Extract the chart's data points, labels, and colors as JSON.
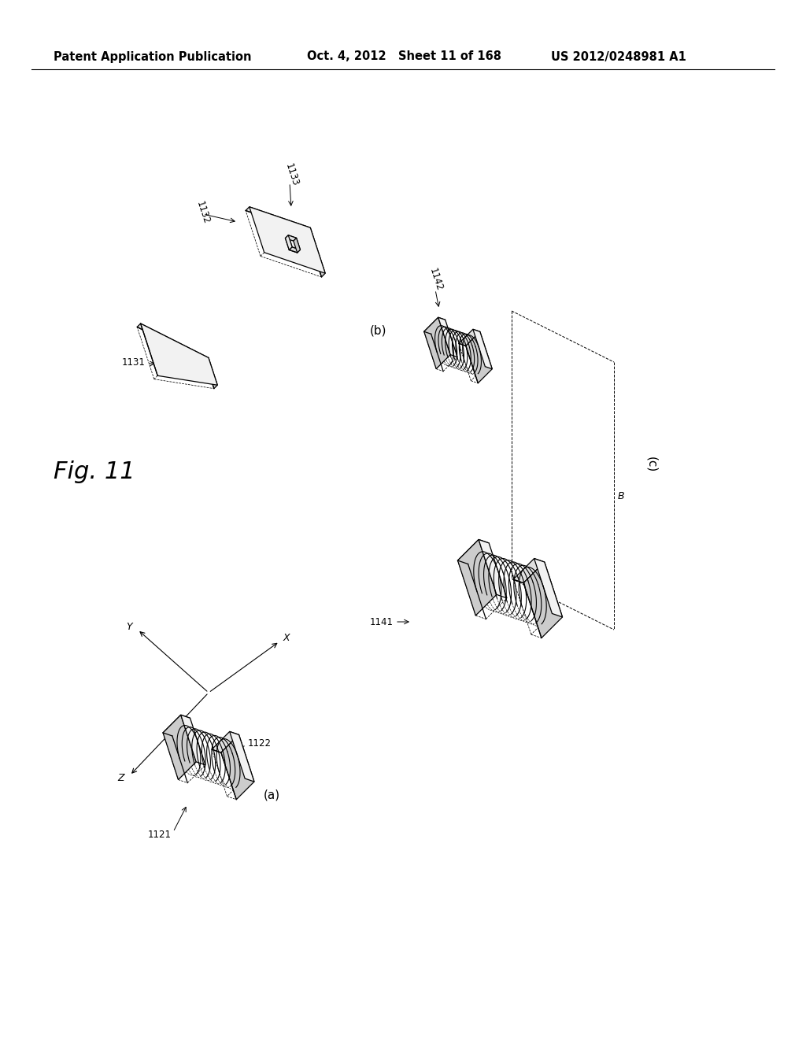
{
  "bg_color": "#ffffff",
  "header_left": "Patent Application Publication",
  "header_center": "Oct. 4, 2012   Sheet 11 of 168",
  "header_right": "US 2012/0248981 A1",
  "fig_label": "Fig. 11",
  "header_fontsize": 10.5,
  "fig_label_fontsize": 22,
  "fill_front": "#f2f2f2",
  "fill_top": "#e0e0e0",
  "fill_side": "#cccccc",
  "fill_coil": "#e8e8e8",
  "fill_coil_dark": "#c0c0c0"
}
